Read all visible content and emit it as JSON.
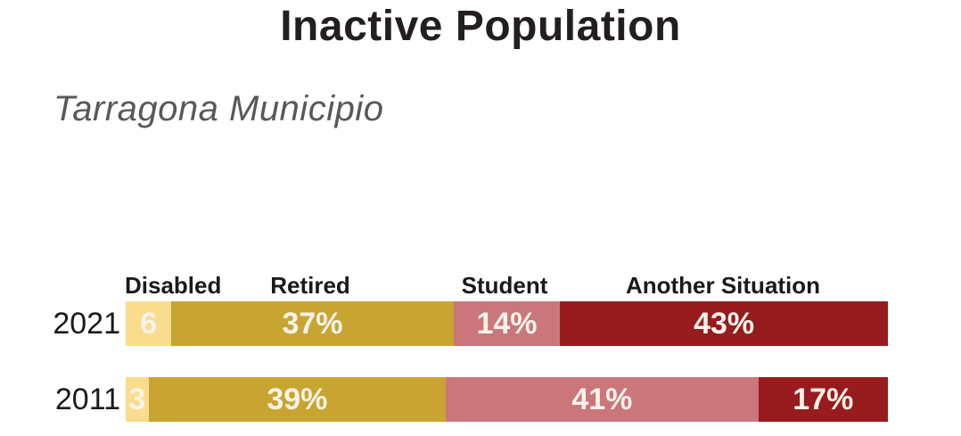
{
  "header": {
    "title": "Inactive Population",
    "subtitle": "Tarragona Municipio"
  },
  "chart_data": {
    "type": "bar",
    "orientation": "horizontal-stacked",
    "unit": "percent",
    "title": "Inactive Population",
    "subtitle": "Tarragona Municipio",
    "categories": [
      "Disabled",
      "Retired",
      "Student",
      "Another Situation"
    ],
    "colors": [
      "#FADD8C",
      "#C8A531",
      "#CB767B",
      "#981B1E"
    ],
    "rows": [
      {
        "year": "2021",
        "values": [
          6,
          37,
          14,
          43
        ],
        "segment_labels": [
          "6",
          "37%",
          "14%",
          "43%"
        ]
      },
      {
        "year": "2011",
        "values": [
          3,
          39,
          41,
          17
        ],
        "segment_labels": [
          "3",
          "39%",
          "41%",
          "17%"
        ]
      }
    ],
    "xlim": [
      0,
      100
    ],
    "grid": false,
    "legend_position": "category-labels-above-bars"
  },
  "colors": {
    "background": "#FFFFFF",
    "title_text": "#231F20",
    "subtitle_text": "#58585A",
    "category_label_text": "#1A1A1A",
    "year_label_text": "#1A1A1A",
    "bar_value_text": "#F8F3EA"
  }
}
